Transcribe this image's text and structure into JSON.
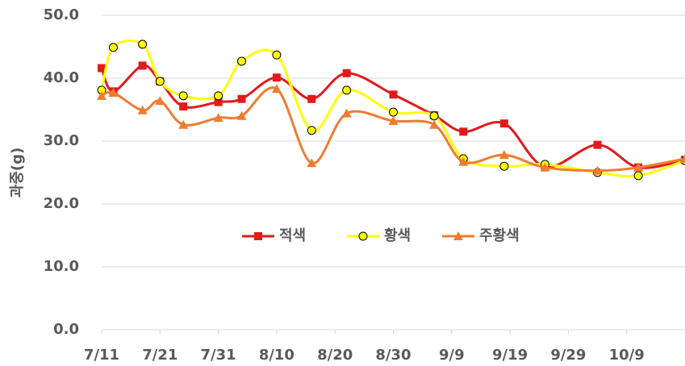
{
  "chart_data": {
    "type": "line",
    "y_label": "과중(g)",
    "x": [
      "7/11",
      "7/13",
      "7/18",
      "7/21",
      "7/25",
      "7/31",
      "8/4",
      "8/10",
      "8/16",
      "8/22",
      "8/30",
      "9/6",
      "9/11",
      "9/18",
      "9/25",
      "10/4",
      "10/11",
      "10/19"
    ],
    "xlim": [
      "7/11",
      "10/19"
    ],
    "xticks": [
      "7/11",
      "7/21",
      "7/31",
      "8/10",
      "8/20",
      "8/30",
      "9/9",
      "9/19",
      "9/29",
      "10/9"
    ],
    "ylim": [
      0,
      50
    ],
    "yticks": [
      {
        "value": 0,
        "label": "0.0"
      },
      {
        "value": 10,
        "label": "10.0"
      },
      {
        "value": 20,
        "label": "20.0"
      },
      {
        "value": 30,
        "label": "30.0"
      },
      {
        "value": 40,
        "label": "40.0"
      },
      {
        "value": 50,
        "label": "50.0"
      }
    ],
    "grid": true,
    "legend": "center",
    "series": [
      {
        "name": "적색",
        "color": "#e31a1c",
        "marker": "square",
        "values": [
          41.6,
          37.9,
          42.0,
          39.5,
          35.5,
          36.2,
          36.7,
          40.1,
          36.7,
          40.8,
          37.4,
          34.1,
          31.5,
          32.8,
          25.9,
          29.4,
          25.8,
          27.0
        ]
      },
      {
        "name": "황색",
        "color": "#ffff00",
        "marker": "circle",
        "values": [
          38.1,
          44.9,
          45.4,
          39.5,
          37.2,
          37.2,
          42.7,
          43.7,
          31.7,
          38.1,
          34.6,
          34.0,
          27.2,
          26.0,
          26.3,
          25.0,
          24.5,
          26.9
        ]
      },
      {
        "name": "주황색",
        "color": "#ed7d31",
        "marker": "triangle",
        "values": [
          37.2,
          37.7,
          34.9,
          36.4,
          32.6,
          33.7,
          34.0,
          38.3,
          26.5,
          34.4,
          33.2,
          32.6,
          26.7,
          27.8,
          25.8,
          25.3,
          25.8,
          27.2
        ]
      }
    ]
  }
}
